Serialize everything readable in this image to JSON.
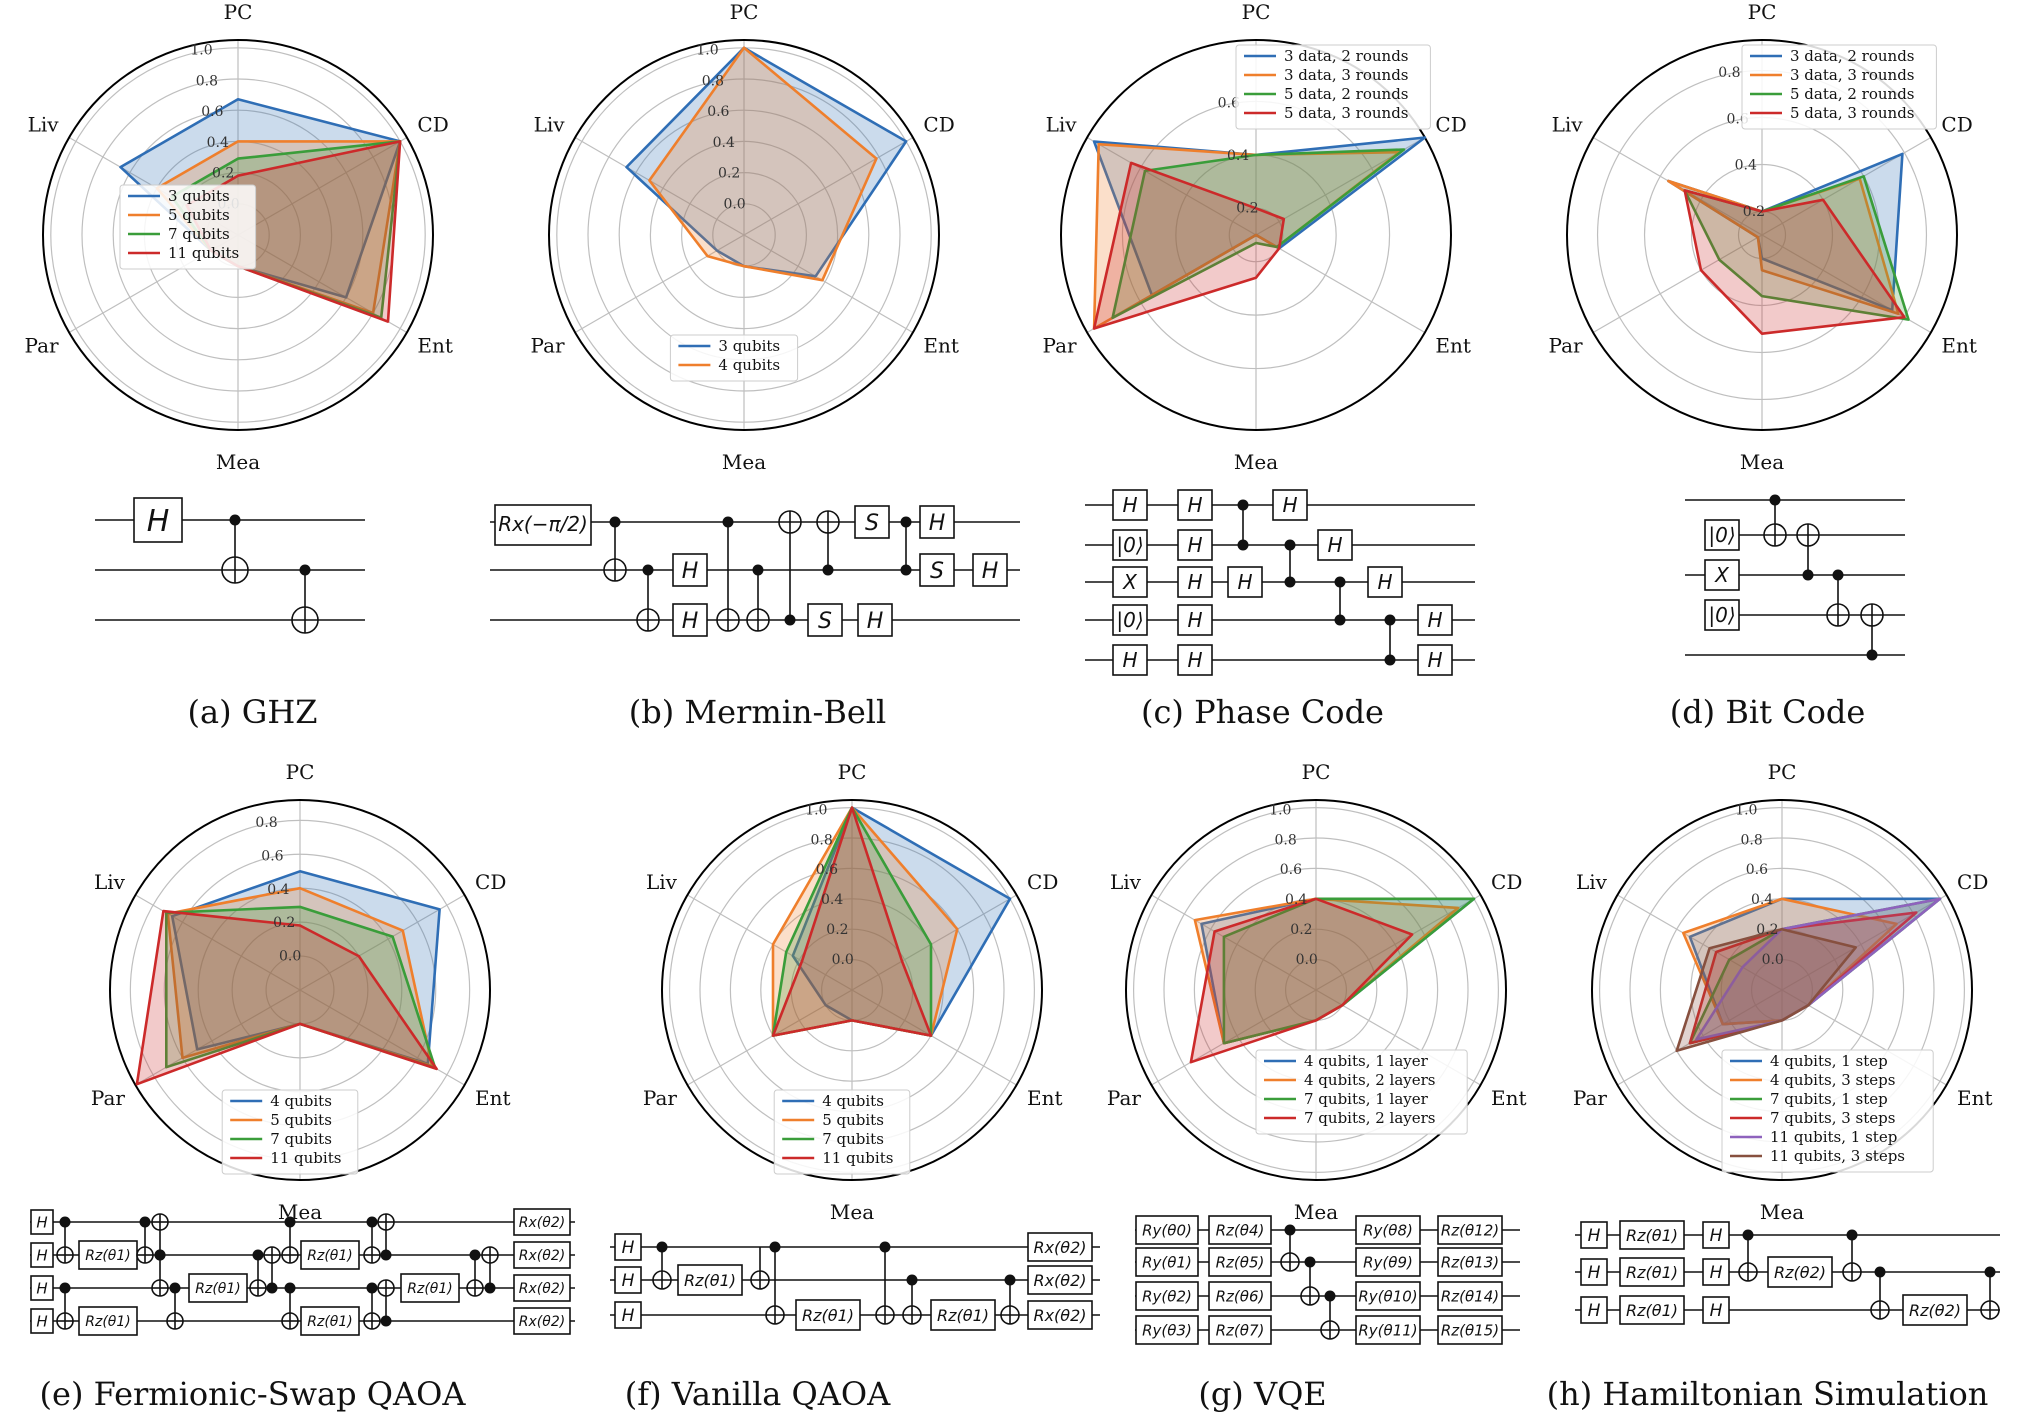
{
  "colors": {
    "blue": "#2f6eb5",
    "orange": "#ef7f2c",
    "green": "#3a9d3a",
    "red": "#cc2a2a",
    "purple": "#8e62bd",
    "brown": "#87503f",
    "grid": "#bfbfbf",
    "frame": "#000000"
  },
  "axes": [
    "PC",
    "CD",
    "Ent",
    "Mea",
    "Par",
    "Liv"
  ],
  "captions": [
    "(a) GHZ",
    "(b) Mermin-Bell",
    "(c) Phase Code",
    "(d) Bit Code",
    "(e) Fermionic-Swap QAOA",
    "(f) Vanilla QAOA",
    "(g) VQE",
    "(h) Hamiltonian Simulation"
  ],
  "chart_data": [
    {
      "type": "radar",
      "caption": "(a) GHZ",
      "axes": [
        "PC",
        "CD",
        "Ent",
        "Mea",
        "Par",
        "Liv"
      ],
      "rticks": [
        "0.0",
        "0.2",
        "0.4",
        "0.6",
        "0.8",
        "1.0"
      ],
      "rlim": [
        -0.2,
        1.05
      ],
      "legend_position": "center-left",
      "series": [
        {
          "name": "3 qubits",
          "color": "blue",
          "values": [
            0.67,
            1.0,
            0.6,
            0.0,
            0.0,
            0.67
          ]
        },
        {
          "name": "5 qubits",
          "color": "orange",
          "values": [
            0.4,
            1.0,
            0.8,
            0.0,
            0.0,
            0.4
          ]
        },
        {
          "name": "7 qubits",
          "color": "green",
          "values": [
            0.29,
            1.0,
            0.86,
            0.0,
            0.0,
            0.29
          ]
        },
        {
          "name": "11 qubits",
          "color": "red",
          "values": [
            0.18,
            1.0,
            0.91,
            0.0,
            0.0,
            0.18
          ]
        }
      ]
    },
    {
      "type": "radar",
      "caption": "(b) Mermin-Bell",
      "axes": [
        "PC",
        "CD",
        "Ent",
        "Mea",
        "Par",
        "Liv"
      ],
      "rticks": [
        "0.0",
        "0.2",
        "0.4",
        "0.6",
        "0.8",
        "1.0"
      ],
      "rlim": [
        -0.2,
        1.05
      ],
      "legend_position": "bottom-center",
      "series": [
        {
          "name": "3 qubits",
          "color": "blue",
          "values": [
            1.0,
            1.0,
            0.33,
            0.0,
            0.0,
            0.67
          ]
        },
        {
          "name": "4 qubits",
          "color": "orange",
          "values": [
            1.0,
            0.78,
            0.38,
            0.0,
            0.07,
            0.5
          ]
        }
      ]
    },
    {
      "type": "radar",
      "caption": "(c) Phase Code",
      "axes": [
        "PC",
        "CD",
        "Ent",
        "Mea",
        "Par",
        "Liv"
      ],
      "rticks": [
        "0.2",
        "0.4",
        "0.6"
      ],
      "rlim": [
        0.1,
        0.83
      ],
      "legend_position": "top-right",
      "series": [
        {
          "name": "3 data, 2 rounds",
          "color": "blue",
          "values": [
            0.4,
            0.83,
            0.2,
            0.1,
            0.55,
            0.8
          ]
        },
        {
          "name": "3 data, 3 rounds",
          "color": "orange",
          "values": [
            0.4,
            0.72,
            0.19,
            0.1,
            0.8,
            0.78
          ]
        },
        {
          "name": "5 data, 2 rounds",
          "color": "green",
          "values": [
            0.4,
            0.74,
            0.19,
            0.13,
            0.72,
            0.58
          ]
        },
        {
          "name": "5 data, 3 rounds",
          "color": "red",
          "values": [
            0.2,
            0.22,
            0.2,
            0.26,
            0.8,
            0.64
          ]
        }
      ]
    },
    {
      "type": "radar",
      "caption": "(d) Bit Code",
      "axes": [
        "PC",
        "CD",
        "Ent",
        "Mea",
        "Par",
        "Liv"
      ],
      "rticks": [
        "0.2",
        "0.4",
        "0.6",
        "0.8"
      ],
      "rlim": [
        0.1,
        0.93
      ],
      "legend_position": "top-right",
      "series": [
        {
          "name": "3 data, 2 rounds",
          "color": "blue",
          "values": [
            0.2,
            0.79,
            0.74,
            0.2,
            0.12,
            0.56
          ]
        },
        {
          "name": "3 data, 3 rounds",
          "color": "orange",
          "values": [
            0.2,
            0.58,
            0.77,
            0.25,
            0.12,
            0.56
          ]
        },
        {
          "name": "5 data, 2 rounds",
          "color": "green",
          "values": [
            0.2,
            0.6,
            0.82,
            0.36,
            0.31,
            0.48
          ]
        },
        {
          "name": "5 data, 3 rounds",
          "color": "red",
          "values": [
            0.2,
            0.4,
            0.8,
            0.52,
            0.4,
            0.48
          ]
        }
      ]
    },
    {
      "type": "radar",
      "caption": "(e) Fermionic-Swap QAOA",
      "axes": [
        "PC",
        "CD",
        "Ent",
        "Mea",
        "Par",
        "Liv"
      ],
      "rticks": [
        "0.0",
        "0.2",
        "0.4",
        "0.6",
        "0.8"
      ],
      "rlim": [
        -0.2,
        0.92
      ],
      "legend_position": "bottom-center",
      "series": [
        {
          "name": "4 qubits",
          "color": "blue",
          "values": [
            0.5,
            0.75,
            0.67,
            0.0,
            0.5,
            0.67
          ]
        },
        {
          "name": "5 qubits",
          "color": "orange",
          "values": [
            0.4,
            0.5,
            0.7,
            0.0,
            0.6,
            0.7
          ]
        },
        {
          "name": "7 qubits",
          "color": "green",
          "values": [
            0.29,
            0.43,
            0.72,
            0.0,
            0.71,
            0.71
          ]
        },
        {
          "name": "11 qubits",
          "color": "red",
          "values": [
            0.18,
            0.2,
            0.73,
            0.0,
            0.91,
            0.73
          ]
        }
      ]
    },
    {
      "type": "radar",
      "caption": "(f) Vanilla QAOA",
      "axes": [
        "PC",
        "CD",
        "Ent",
        "Mea",
        "Par",
        "Liv"
      ],
      "rticks": [
        "0.0",
        "0.2",
        "0.4",
        "0.6",
        "0.8",
        "1.0"
      ],
      "rlim": [
        -0.2,
        1.05
      ],
      "legend_position": "bottom-center",
      "series": [
        {
          "name": "4 qubits",
          "color": "blue",
          "values": [
            1.0,
            1.0,
            0.4,
            0.0,
            0.0,
            0.25
          ]
        },
        {
          "name": "5 qubits",
          "color": "orange",
          "values": [
            1.0,
            0.6,
            0.4,
            0.0,
            0.4,
            0.4
          ]
        },
        {
          "name": "7 qubits",
          "color": "green",
          "values": [
            1.0,
            0.4,
            0.4,
            0.0,
            0.4,
            0.3
          ]
        },
        {
          "name": "11 qubits",
          "color": "red",
          "values": [
            1.0,
            0.18,
            0.4,
            0.0,
            0.4,
            0.18
          ]
        }
      ]
    },
    {
      "type": "radar",
      "caption": "(g) VQE",
      "axes": [
        "PC",
        "CD",
        "Ent",
        "Mea",
        "Par",
        "Liv"
      ],
      "rticks": [
        "0.0",
        "0.2",
        "0.4",
        "0.6",
        "0.8",
        "1.0"
      ],
      "rlim": [
        -0.2,
        1.05
      ],
      "legend_position": "bottom-right",
      "series": [
        {
          "name": "4 qubits, 1 layer",
          "color": "blue",
          "values": [
            0.4,
            1.0,
            0.0,
            0.0,
            0.5,
            0.67
          ]
        },
        {
          "name": "4 qubits, 2 layers",
          "color": "orange",
          "values": [
            0.4,
            0.88,
            0.0,
            0.0,
            0.5,
            0.72
          ]
        },
        {
          "name": "7 qubits, 1 layer",
          "color": "green",
          "values": [
            0.4,
            1.0,
            0.0,
            0.0,
            0.5,
            0.5
          ]
        },
        {
          "name": "7 qubits, 2 layers",
          "color": "red",
          "values": [
            0.4,
            0.53,
            0.0,
            0.0,
            0.75,
            0.57
          ]
        }
      ]
    },
    {
      "type": "radar",
      "caption": "(h) Hamiltonian Simulation",
      "axes": [
        "PC",
        "CD",
        "Ent",
        "Mea",
        "Par",
        "Liv"
      ],
      "rticks": [
        "0.0",
        "0.2",
        "0.4",
        "0.6",
        "0.8",
        "1.0"
      ],
      "rlim": [
        -0.2,
        1.05
      ],
      "legend_position": "bottom-right",
      "series": [
        {
          "name": "4 qubits, 1 step",
          "color": "blue",
          "values": [
            0.4,
            1.0,
            0.0,
            0.0,
            0.25,
            0.5
          ]
        },
        {
          "name": "4 qubits, 3 steps",
          "color": "orange",
          "values": [
            0.4,
            0.67,
            0.0,
            0.0,
            0.25,
            0.55
          ]
        },
        {
          "name": "7 qubits, 1 step",
          "color": "green",
          "values": [
            0.2,
            1.0,
            0.0,
            0.0,
            0.5,
            0.2
          ]
        },
        {
          "name": "7 qubits, 3 steps",
          "color": "red",
          "values": [
            0.2,
            0.82,
            0.0,
            0.0,
            0.5,
            0.3
          ]
        },
        {
          "name": "11 qubits, 1 step",
          "color": "purple",
          "values": [
            0.2,
            1.0,
            0.0,
            0.0,
            0.45,
            0.1
          ]
        },
        {
          "name": "11 qubits, 3 steps",
          "color": "brown",
          "values": [
            0.2,
            0.36,
            0.0,
            0.0,
            0.6,
            0.35
          ]
        }
      ]
    }
  ],
  "circuits": [
    {
      "id": "a",
      "wires": 3,
      "gates": [
        {
          "t": "box",
          "w": 0,
          "c": 1,
          "label": "H"
        },
        {
          "t": "cnot",
          "ctrl": 0,
          "tgt": 1,
          "c": 2
        },
        {
          "t": "cnot",
          "ctrl": 1,
          "tgt": 2,
          "c": 3
        }
      ]
    },
    {
      "id": "b",
      "wires": 3,
      "gates": [
        {
          "t": "box",
          "w": 0,
          "c": 1,
          "label": "Rₓ(−π/2)"
        },
        {
          "t": "cnot",
          "ctrl": 0,
          "tgt": 1,
          "c": 2
        },
        {
          "t": "cnot",
          "ctrl": 1,
          "tgt": 2,
          "c": 3
        },
        {
          "t": "box",
          "w": 1,
          "c": 4,
          "label": "H"
        },
        {
          "t": "box",
          "w": 2,
          "c": 4,
          "label": "H"
        },
        {
          "t": "cnot",
          "ctrl": 0,
          "tgt": 2,
          "c": 5
        },
        {
          "t": "cnot",
          "ctrl": 1,
          "tgt": 2,
          "c": 6
        },
        {
          "t": "cnot",
          "ctrl": 2,
          "tgt": 0,
          "c": 7
        },
        {
          "t": "cnot",
          "ctrl": 1,
          "tgt": 0,
          "c": 8
        },
        {
          "t": "box",
          "w": 2,
          "c": 8,
          "label": "S"
        },
        {
          "t": "box",
          "w": 0,
          "c": 9,
          "label": "S"
        },
        {
          "t": "box",
          "w": 2,
          "c": 9,
          "label": "H"
        },
        {
          "t": "cz",
          "ctrl": 0,
          "tgt": 1,
          "c": 10
        },
        {
          "t": "box",
          "w": 0,
          "c": 11,
          "label": "H"
        },
        {
          "t": "box",
          "w": 1,
          "c": 11,
          "label": "S"
        },
        {
          "t": "box",
          "w": 1,
          "c": 12,
          "label": "H"
        }
      ]
    },
    {
      "id": "c",
      "wires": 5,
      "gates": [
        {
          "t": "box",
          "w": 0,
          "c": 1,
          "label": "H"
        },
        {
          "t": "box",
          "w": 1,
          "c": 1,
          "label": "|0⟩"
        },
        {
          "t": "box",
          "w": 2,
          "c": 1,
          "label": "X"
        },
        {
          "t": "box",
          "w": 3,
          "c": 1,
          "label": "|0⟩"
        },
        {
          "t": "box",
          "w": 4,
          "c": 1,
          "label": "H"
        },
        {
          "t": "box",
          "w": 0,
          "c": 2,
          "label": "H"
        },
        {
          "t": "box",
          "w": 1,
          "c": 2,
          "label": "H"
        },
        {
          "t": "box",
          "w": 2,
          "c": 2,
          "label": "H"
        },
        {
          "t": "box",
          "w": 3,
          "c": 2,
          "label": "H"
        },
        {
          "t": "box",
          "w": 4,
          "c": 2,
          "label": "H"
        },
        {
          "t": "cz",
          "ctrl": 0,
          "tgt": 1,
          "c": 3
        },
        {
          "t": "box",
          "w": 2,
          "c": 3.5,
          "label": "H"
        },
        {
          "t": "box",
          "w": 0,
          "c": 4.5,
          "label": "H"
        },
        {
          "t": "cz",
          "ctrl": 1,
          "tgt": 2,
          "c": 4.5
        },
        {
          "t": "box",
          "w": 1,
          "c": 5.5,
          "label": "H"
        },
        {
          "t": "cz",
          "ctrl": 2,
          "tgt": 3,
          "c": 6
        },
        {
          "t": "box",
          "w": 2,
          "c": 6.8,
          "label": "H"
        },
        {
          "t": "cz",
          "ctrl": 3,
          "tgt": 4,
          "c": 7.5
        },
        {
          "t": "box",
          "w": 3,
          "c": 8.5,
          "label": "H"
        },
        {
          "t": "box",
          "w": 4,
          "c": 8.5,
          "label": "H"
        }
      ]
    },
    {
      "id": "d",
      "wires": 5,
      "gates": [
        {
          "t": "box",
          "w": 1,
          "c": 1,
          "label": "|0⟩"
        },
        {
          "t": "box",
          "w": 2,
          "c": 1,
          "label": "X"
        },
        {
          "t": "box",
          "w": 3,
          "c": 1,
          "label": "|0⟩"
        },
        {
          "t": "cnot",
          "ctrl": 0,
          "tgt": 1,
          "c": 2
        },
        {
          "t": "cnot",
          "ctrl": 2,
          "tgt": 1,
          "c": 3
        },
        {
          "t": "cnot",
          "ctrl": 2,
          "tgt": 3,
          "c": 4
        },
        {
          "t": "cnot",
          "ctrl": 4,
          "tgt": 3,
          "c": 5
        }
      ]
    },
    {
      "id": "e",
      "wires": 4,
      "gates": []
    },
    {
      "id": "f",
      "wires": 3,
      "gates": []
    },
    {
      "id": "g",
      "wires": 4,
      "gates": []
    },
    {
      "id": "h",
      "wires": 3,
      "gates": []
    }
  ]
}
